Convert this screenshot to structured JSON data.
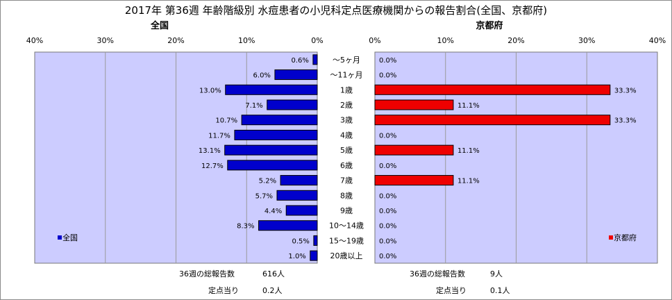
{
  "title": "2017年 第36週 年齢階級別 水痘患者の小児科定点医療機関からの報告割合(全国、京都府)",
  "chart_data": [
    {
      "type": "bar",
      "orientation": "horizontal",
      "direction": "right-to-left",
      "title": "全国",
      "xlim": [
        0,
        40
      ],
      "tick_labels": [
        "0%",
        "10%",
        "20%",
        "30%",
        "40%"
      ],
      "grid": true,
      "legend": "bottom-left",
      "legend_label": "全国",
      "color": "#0000cc",
      "categories": [
        "～5ヶ月",
        "～11ヶ月",
        "1歳",
        "2歳",
        "3歳",
        "4歳",
        "5歳",
        "6歳",
        "7歳",
        "8歳",
        "9歳",
        "10～14歳",
        "15～19歳",
        "20歳以上"
      ],
      "values": [
        0.6,
        6.0,
        13.0,
        7.1,
        10.7,
        11.7,
        13.1,
        12.7,
        5.2,
        5.7,
        4.4,
        8.3,
        0.5,
        1.0
      ],
      "value_labels": [
        "0.6%",
        "6.0%",
        "13.0%",
        "7.1%",
        "10.7%",
        "11.7%",
        "13.1%",
        "12.7%",
        "5.2%",
        "5.7%",
        "4.4%",
        "8.3%",
        "0.5%",
        "1.0%"
      ]
    },
    {
      "type": "bar",
      "orientation": "horizontal",
      "direction": "left-to-right",
      "title": "京都府",
      "xlim": [
        0,
        40
      ],
      "tick_labels": [
        "0%",
        "10%",
        "20%",
        "30%",
        "40%"
      ],
      "grid": true,
      "legend": "bottom-right",
      "legend_label": "京都府",
      "color": "#ee0000",
      "categories": [
        "～5ヶ月",
        "～11ヶ月",
        "1歳",
        "2歳",
        "3歳",
        "4歳",
        "5歳",
        "6歳",
        "7歳",
        "8歳",
        "9歳",
        "10～14歳",
        "15～19歳",
        "20歳以上"
      ],
      "values": [
        0.0,
        0.0,
        33.3,
        11.1,
        33.3,
        0.0,
        11.1,
        0.0,
        11.1,
        0.0,
        0.0,
        0.0,
        0.0,
        0.0
      ],
      "value_labels": [
        "0.0%",
        "0.0%",
        "33.3%",
        "11.1%",
        "33.3%",
        "0.0%",
        "11.1%",
        "0.0%",
        "11.1%",
        "0.0%",
        "0.0%",
        "0.0%",
        "0.0%",
        "0.0%"
      ]
    }
  ],
  "footer": {
    "national_total_label": "36週の総報告数",
    "national_total_value": "616人",
    "national_per_label": "定点当り",
    "national_per_value": "0.2人",
    "kyoto_total_label": "36週の総報告数",
    "kyoto_total_value": "9人",
    "kyoto_per_label": "定点当り",
    "kyoto_per_value": "0.1人"
  },
  "colors": {
    "plot_background": "#ccccff",
    "grid": "#9a9a9a",
    "national_bar": "#0000cc",
    "kyoto_bar": "#ee0000"
  }
}
